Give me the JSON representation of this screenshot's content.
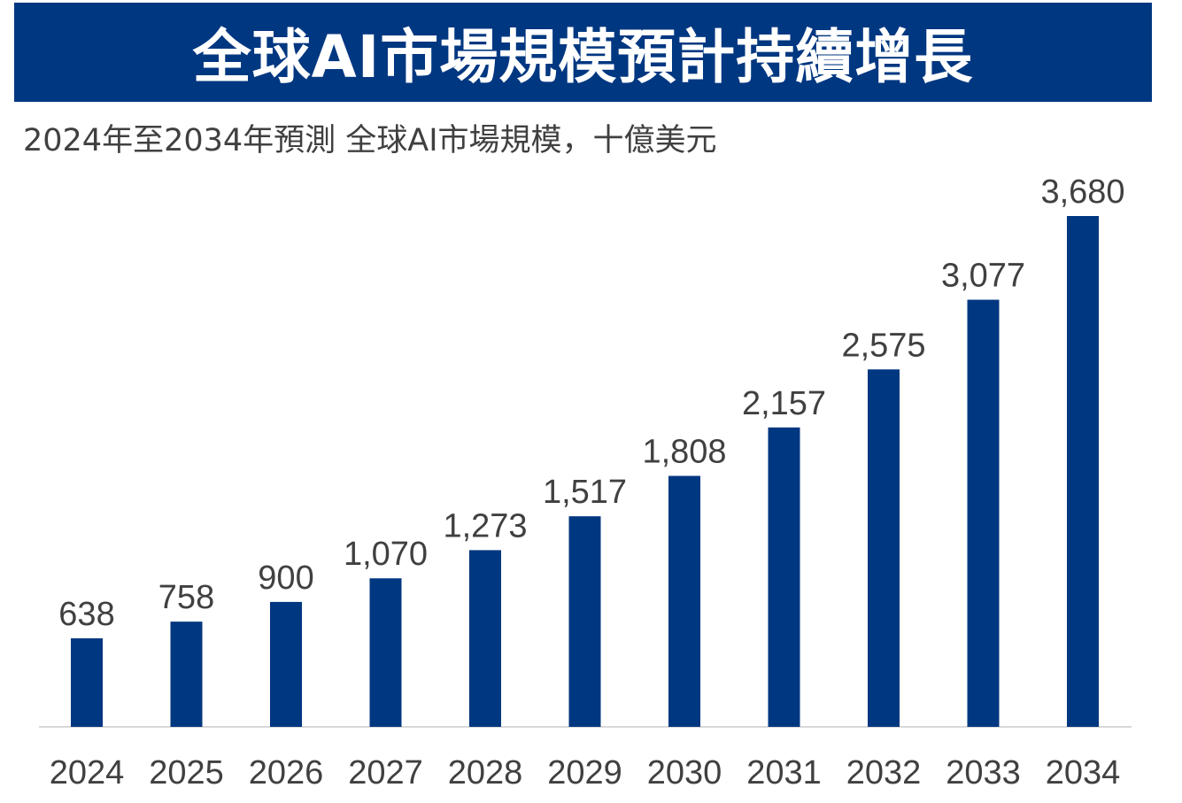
{
  "header": {
    "title": "全球AI市場規模預計持續增長",
    "subtitle": "2024年至2034年預測 全球AI市場規模，十億美元"
  },
  "colors": {
    "banner": "#003781",
    "bar": "#003781",
    "axis": "#d9d9d9",
    "text": "#404040"
  },
  "chart_data": {
    "type": "bar",
    "title": "全球AI市場規模預計持續增長",
    "subtitle": "2024年至2034年預測 全球AI市場規模，十億美元",
    "xlabel": "",
    "ylabel": "",
    "categories": [
      "2024",
      "2025",
      "2026",
      "2027",
      "2028",
      "2029",
      "2030",
      "2031",
      "2032",
      "2033",
      "2034"
    ],
    "values": [
      638,
      758,
      900,
      1070,
      1273,
      1517,
      1808,
      2157,
      2575,
      3077,
      3680
    ],
    "value_labels": [
      "638",
      "758",
      "900",
      "1,070",
      "1,273",
      "1,517",
      "1,808",
      "2,157",
      "2,575",
      "3,077",
      "3,680"
    ],
    "ylim": [
      0,
      3680
    ],
    "grid": false,
    "legend": "none"
  }
}
